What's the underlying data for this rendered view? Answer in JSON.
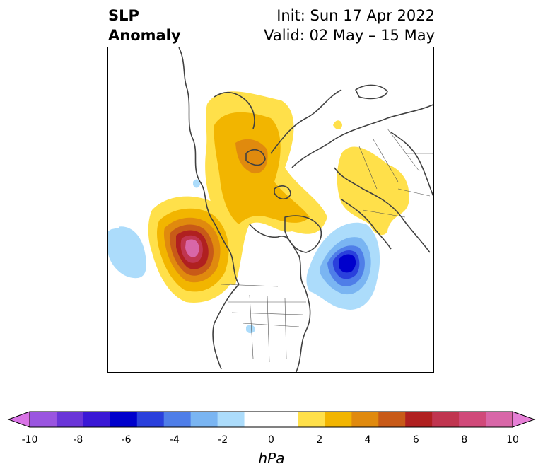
{
  "title": {
    "left_line1": "SLP",
    "left_line2": "Anomaly",
    "init": "Init: Sun 17 Apr 2022",
    "valid": "Valid: 02 May – 15 May"
  },
  "colorbar": {
    "unit": "hPa",
    "min": -10,
    "max": 10,
    "tick_values": [
      -10,
      -8,
      -6,
      -4,
      -2,
      0,
      2,
      4,
      6,
      8,
      10
    ],
    "tick_labels": [
      "-10",
      "-8",
      "-6",
      "-4",
      "-2",
      "0",
      "2",
      "4",
      "6",
      "8",
      "10"
    ],
    "colors": [
      "#d973e6",
      "#9a55e0",
      "#6a35d8",
      "#3a18d6",
      "#0000cc",
      "#2a40dc",
      "#4f7ee8",
      "#7ab5f2",
      "#acdcfb",
      "#ffffff",
      "#ffffff",
      "#ffe04a",
      "#f2b500",
      "#e08a0e",
      "#c85a18",
      "#b02020",
      "#c03550",
      "#d04a7a",
      "#d867a8",
      "#e67fd6"
    ]
  }
}
